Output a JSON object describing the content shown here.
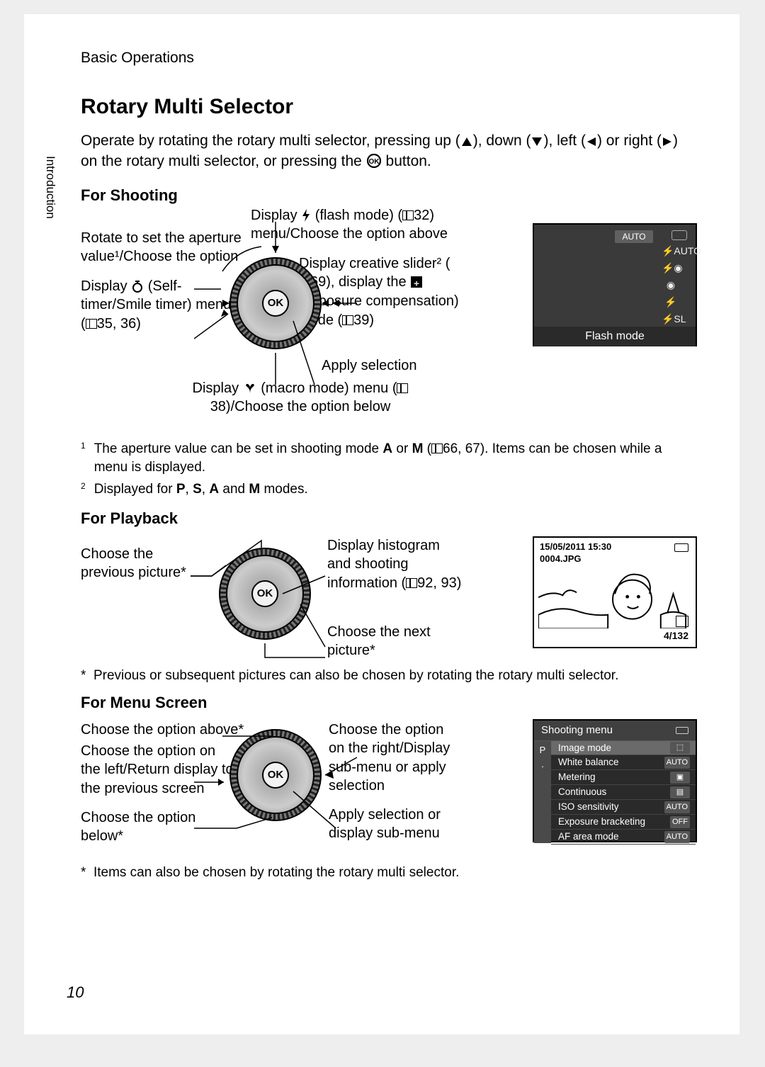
{
  "page": {
    "number": "10",
    "section_tab": "Introduction",
    "header": "Basic Operations"
  },
  "title": "Rotary Multi Selector",
  "intro": {
    "text_a": "Operate by rotating the rotary multi selector, pressing up (",
    "text_b": "), down (",
    "text_c": "), left (",
    "text_d": ") or right (",
    "text_e": ") on the rotary multi selector, or pressing the ",
    "text_f": " button.",
    "ok_label": "OK"
  },
  "shooting": {
    "heading": "For Shooting",
    "callouts": {
      "aperture": "Rotate to set the aperture value¹/Choose the option",
      "selftimer_a": "Display ",
      "selftimer_b": " (Self-timer/Smile timer) menu (",
      "selftimer_c": "35, 36)",
      "flash_a": "Display ",
      "flash_b": " (flash mode) (",
      "flash_c": "32) menu/Choose the option above",
      "slider_a": "Display creative slider² (",
      "slider_b": "69), display the ",
      "slider_c": " (exposure compensation) guide (",
      "slider_d": "39)",
      "apply": "Apply selection",
      "macro_a": "Display ",
      "macro_b": " (macro mode) menu (",
      "macro_c": "38)/Choose the option below"
    },
    "footnotes": {
      "fn1_a": "The aperture value can be set in shooting mode ",
      "fn1_b": " or ",
      "fn1_c": " (",
      "fn1_d": "66, 67). Items can be chosen while a menu is displayed.",
      "fn1_modeA": "A",
      "fn1_modeM": "M",
      "fn2_a": "Displayed for ",
      "fn2_b": ", ",
      "fn2_c": ", ",
      "fn2_d": " and ",
      "fn2_e": " modes.",
      "fn2_P": "P",
      "fn2_S": "S",
      "fn2_A": "A",
      "fn2_M": "M"
    },
    "lcd": {
      "auto_badge": "AUTO",
      "bottom_label": "Flash mode",
      "icons": [
        "⚡AUTO",
        "⚡◉",
        "◉",
        "⚡",
        "⚡SL"
      ]
    }
  },
  "playback": {
    "heading": "For Playback",
    "callouts": {
      "prev": "Choose the previous picture*",
      "hist_a": "Display histogram and shooting information (",
      "hist_b": "92, 93)",
      "next": "Choose the next picture*"
    },
    "footnote": "Previous or subsequent pictures can also be chosen by rotating the rotary multi selector.",
    "lcd": {
      "date": "15/05/2011 15:30",
      "filename": "0004.JPG",
      "counter": "4/132"
    }
  },
  "menu": {
    "heading": "For Menu Screen",
    "callouts": {
      "above": "Choose the option above*",
      "left": "Choose the option on the left/Return display to the previous screen",
      "below": "Choose the option below*",
      "right": "Choose the option on the right/Display sub-menu or apply selection",
      "apply": "Apply selection or display sub-menu"
    },
    "footnote": "Items can also be chosen by rotating the rotary multi selector.",
    "lcd": {
      "title": "Shooting menu",
      "side_mode": "P",
      "items": [
        {
          "label": "Image mode",
          "value": "⬚",
          "selected": true
        },
        {
          "label": "White balance",
          "value": "AUTO"
        },
        {
          "label": "Metering",
          "value": "▣"
        },
        {
          "label": "Continuous",
          "value": "▤"
        },
        {
          "label": "ISO sensitivity",
          "value": "AUTO"
        },
        {
          "label": "Exposure bracketing",
          "value": "OFF"
        },
        {
          "label": "AF area mode",
          "value": "AUTO"
        }
      ]
    }
  },
  "colors": {
    "page_bg": "#ffffff",
    "body_bg": "#eeeeee",
    "lcd_bg": "#3a3a3a",
    "lcd_text": "#ffffff",
    "menu_row_sel": "#6a6a6a"
  }
}
